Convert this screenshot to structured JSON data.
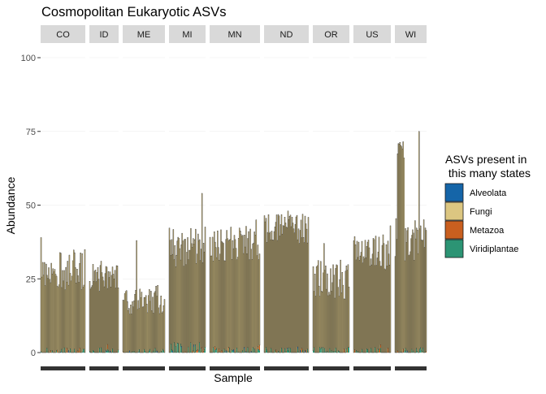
{
  "chart_data": {
    "type": "bar",
    "stacked": true,
    "title": "Cosmopolitan Eukaryotic ASVs",
    "xlabel": "Sample",
    "ylabel": "Abundance",
    "ylim": [
      0,
      100
    ],
    "yticks": [
      0,
      25,
      50,
      75,
      100
    ],
    "grid": true,
    "legend": {
      "title": "ASVs present in\n this many states",
      "position": "right",
      "items": [
        {
          "name": "Alveolata",
          "color": "#1565a8"
        },
        {
          "name": "Fungi",
          "color": "#dcc681"
        },
        {
          "name": "Metazoa",
          "color": "#c95f1f"
        },
        {
          "name": "Viridiplantae",
          "color": "#2c9474"
        }
      ]
    },
    "facets": [
      {
        "label": "CO",
        "n": 52,
        "base": 28,
        "spread": 7,
        "peak": 39
      },
      {
        "label": "ID",
        "n": 36,
        "base": 25,
        "spread": 5,
        "peak": 31
      },
      {
        "label": "ME",
        "n": 50,
        "base": 18,
        "spread": 5,
        "peak": 38
      },
      {
        "label": "MI",
        "n": 46,
        "base": 36,
        "spread": 7,
        "peak": 54
      },
      {
        "label": "MN",
        "n": 60,
        "base": 37,
        "spread": 6,
        "peak": 45
      },
      {
        "label": "ND",
        "n": 55,
        "base": 42,
        "spread": 5,
        "peak": 48
      },
      {
        "label": "OR",
        "n": 44,
        "base": 25,
        "spread": 7,
        "peak": 37
      },
      {
        "label": "US",
        "n": 46,
        "base": 34,
        "spread": 6,
        "peak": 43
      },
      {
        "label": "WI",
        "n": 40,
        "base": 38,
        "spread": 8,
        "peak": 75
      }
    ]
  }
}
